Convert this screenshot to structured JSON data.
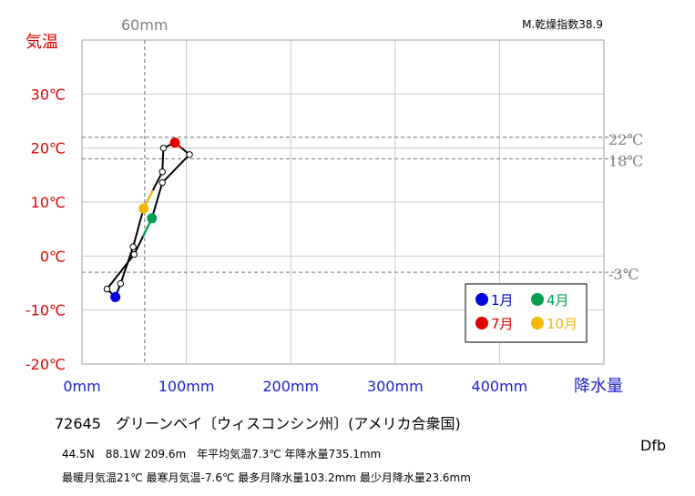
{
  "chart_data": {
    "type": "line",
    "subtype": "hythergraph",
    "x_axis_label": "降水量",
    "y_axis_label": "気温",
    "xlim": [
      0,
      500
    ],
    "ylim": [
      -20,
      40
    ],
    "x_ticks": [
      0,
      100,
      200,
      300,
      400
    ],
    "x_tick_labels": [
      "0mm",
      "100mm",
      "200mm",
      "300mm",
      "400mm"
    ],
    "y_ticks": [
      -20,
      -10,
      0,
      10,
      20,
      30
    ],
    "y_tick_labels": [
      "-20℃",
      "-10℃",
      "0℃",
      "10℃",
      "20℃",
      "30℃"
    ],
    "grid": true,
    "dryness_index_label": "M.乾燥指数38.9",
    "reference_lines": [
      {
        "orientation": "vertical",
        "value": 60,
        "label": "60mm"
      },
      {
        "orientation": "horizontal",
        "value": 22,
        "label": "22℃"
      },
      {
        "orientation": "horizontal",
        "value": 18,
        "label": "18℃"
      },
      {
        "orientation": "horizontal",
        "value": -3,
        "label": "-3℃"
      }
    ],
    "months": [
      1,
      2,
      3,
      4,
      5,
      6,
      7,
      8,
      9,
      10,
      11,
      12
    ],
    "precipitation_mm": [
      32,
      24,
      50,
      67,
      77,
      103,
      89,
      78,
      77,
      59,
      49,
      37
    ],
    "temperature_c": [
      -7.6,
      -6.1,
      0.3,
      7.0,
      13.6,
      18.8,
      21.0,
      20.0,
      15.6,
      8.8,
      1.7,
      -5.1
    ],
    "highlight_colors": {
      "1": "#0000e0",
      "4": "#00a050",
      "7": "#e00000",
      "10": "#f0b800"
    },
    "legend": {
      "position": "bottom-right",
      "entries": [
        {
          "month": 1,
          "label": "1月",
          "color": "#0000e0"
        },
        {
          "month": 4,
          "label": "4月",
          "color": "#00a050"
        },
        {
          "month": 7,
          "label": "7月",
          "color": "#e00000"
        },
        {
          "month": 10,
          "label": "10月",
          "color": "#f0b800"
        }
      ]
    }
  },
  "station_line": "72645　グリーンベイ〔ウィスコンシン州〕(アメリカ合衆国)",
  "info_line_1": "44.5N　88.1W 209.6m　年平均気温7.3℃ 年降水量735.1mm",
  "info_line_2": "最暖月気温21℃ 最寒月気温-7.6℃ 最多月降水量103.2mm 最少月降水量23.6mm",
  "climate_code": "Dfb",
  "colors": {
    "temperature_axis": "#e00000",
    "precipitation_axis": "#2020d0",
    "reference": "#909090",
    "grid": "#c8c8c8"
  }
}
